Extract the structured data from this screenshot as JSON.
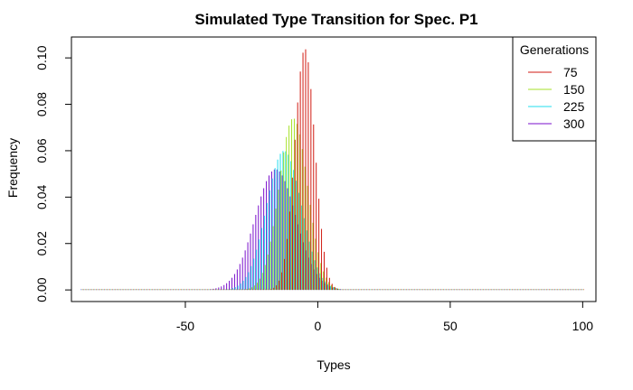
{
  "chart_data": {
    "type": "line",
    "plot_style": "vertical-lines-histogram",
    "title": "Simulated Type Transition for Spec. P1",
    "xlabel": "Types",
    "ylabel": "Frequency",
    "xlim": [
      -93,
      105
    ],
    "ylim": [
      -0.005,
      0.109
    ],
    "x_ticks": [
      -50,
      0,
      50,
      100
    ],
    "y_ticks": [
      0.0,
      0.02,
      0.04,
      0.06,
      0.08,
      0.1
    ],
    "x_tick_labels": [
      "-50",
      "0",
      "50",
      "100"
    ],
    "y_tick_labels": [
      "0.00",
      "0.02",
      "0.04",
      "0.06",
      "0.08",
      "0.10"
    ],
    "grid": false,
    "legend": {
      "title": "Generations",
      "position": "top-right"
    },
    "x_range": [
      -89,
      100
    ],
    "series": [
      {
        "name": "300",
        "color": "#7A0FCC",
        "mean": -15.5,
        "sd": 7.7,
        "peak": 0.052
      },
      {
        "name": "225",
        "color": "#22DDEE",
        "mean": -12.6,
        "sd": 6.6,
        "peak": 0.06
      },
      {
        "name": "150",
        "color": "#A6E22A",
        "mean": -9.4,
        "sd": 5.4,
        "peak": 0.074
      },
      {
        "name": "75",
        "color": "#D11A12",
        "mean": -5.3,
        "sd": 3.8,
        "peak": 0.104
      }
    ]
  }
}
